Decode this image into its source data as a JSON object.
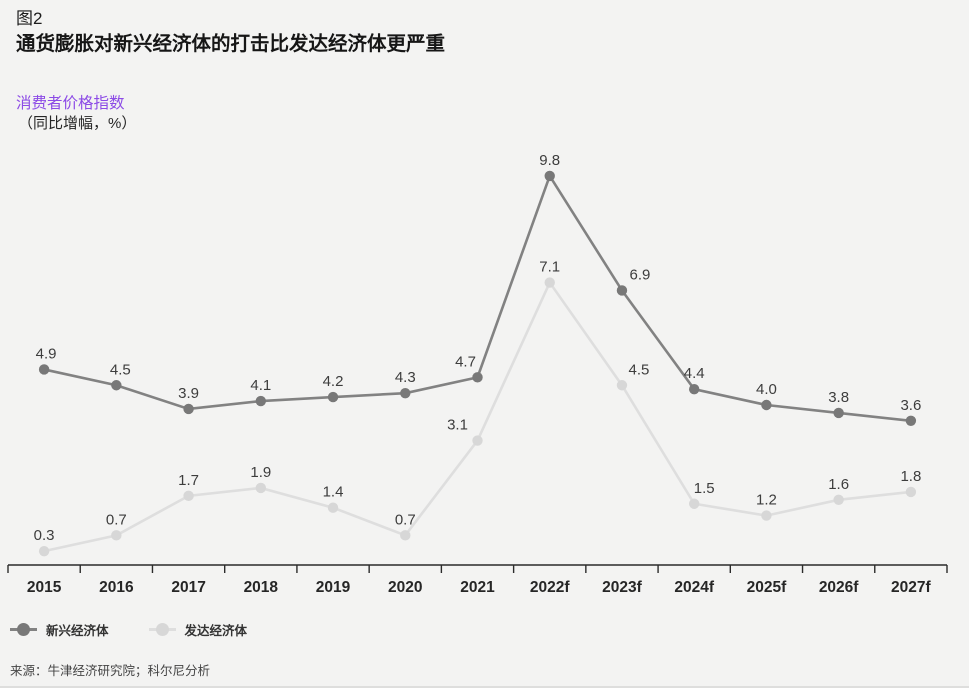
{
  "header": {
    "figure_label": "图2",
    "title": "通货膨胀对新兴经济体的打击比发达经济体更严重"
  },
  "y_axis": {
    "label": "消费者价格指数",
    "sublabel": "（同比增幅，%）",
    "label_color": "#8c4be6"
  },
  "chart_data": {
    "type": "line",
    "title": "通货膨胀对新兴经济体的打击比发达经济体更严重",
    "ylabel": "消费者价格指数（同比增幅，%）",
    "xlabel": "",
    "categories": [
      "2015",
      "2016",
      "2017",
      "2018",
      "2019",
      "2020",
      "2021",
      "2022f",
      "2023f",
      "2024f",
      "2025f",
      "2026f",
      "2027f"
    ],
    "series": [
      {
        "name": "新兴经济体",
        "color": "#787878",
        "line_color": "#828282",
        "values": [
          4.9,
          4.5,
          3.9,
          4.1,
          4.2,
          4.3,
          4.7,
          9.8,
          6.9,
          4.4,
          4.0,
          3.8,
          3.6
        ]
      },
      {
        "name": "发达经济体",
        "color": "#d7d7d7",
        "line_color": "#dedede",
        "values": [
          0.3,
          0.7,
          1.7,
          1.9,
          1.4,
          0.7,
          3.1,
          7.1,
          4.5,
          1.5,
          1.2,
          1.6,
          1.8
        ]
      }
    ],
    "ylim": [
      0,
      10.7
    ],
    "grid": false,
    "value_labels": true,
    "legend_position": "bottom-left",
    "axis_color": "#2b2b2b",
    "value_label_color": "#3d3d3d"
  },
  "source": "来源：牛津经济研究院；科尔尼分析"
}
